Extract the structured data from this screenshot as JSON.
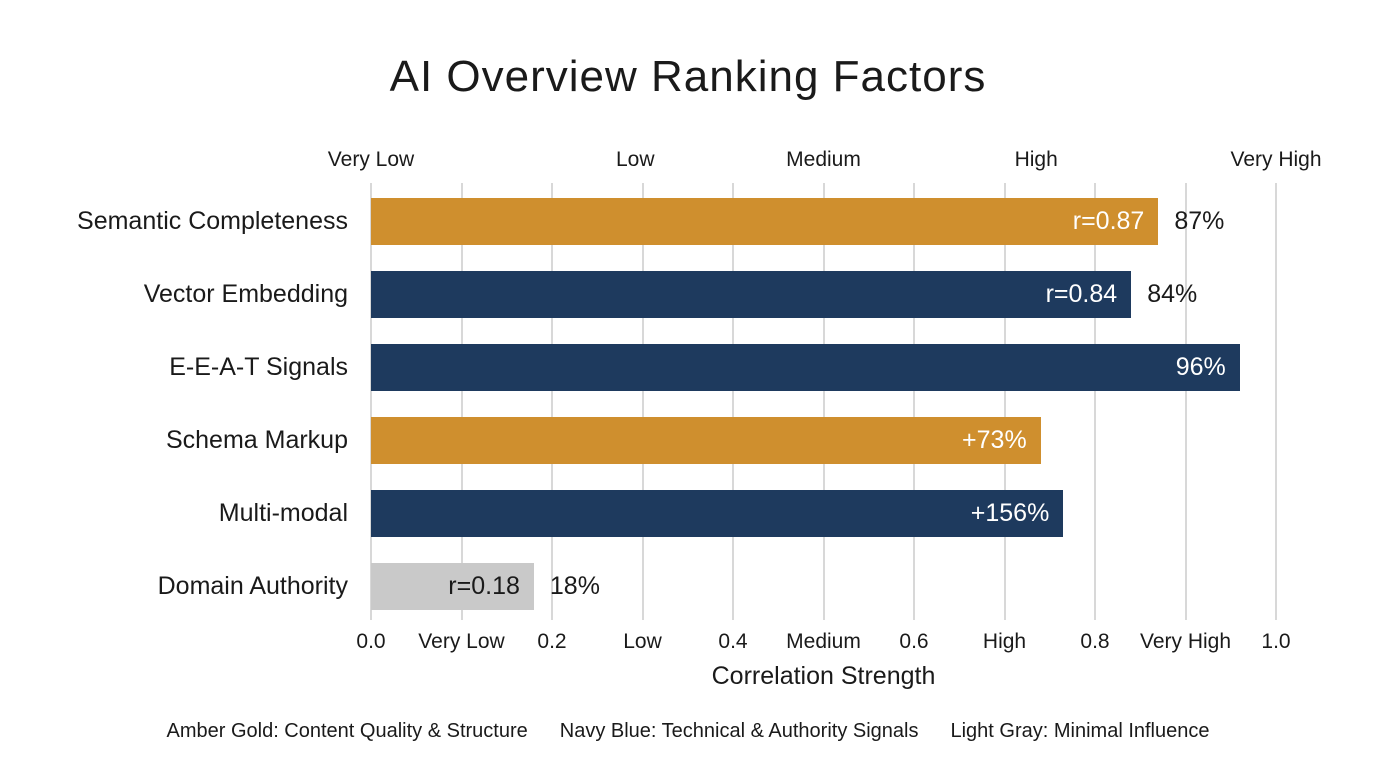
{
  "title": "AI Overview Ranking Factors",
  "chart_data": {
    "type": "bar",
    "orientation": "horizontal",
    "title": "AI Overview Ranking Factors",
    "xlabel": "Correlation Strength",
    "xlim": [
      0,
      1
    ],
    "grid": true,
    "gridline_positions": [
      0,
      0.1,
      0.2,
      0.3,
      0.4,
      0.5,
      0.6,
      0.7,
      0.8,
      0.9,
      1.0
    ],
    "categories": [
      "Semantic Completeness",
      "Vector Embedding",
      "E-E-A-T Signals",
      "Schema Markup",
      "Multi-modal",
      "Domain Authority"
    ],
    "series": [
      {
        "category": "Semantic Completeness",
        "bar_fraction": 0.87,
        "inside_label": "r=0.87",
        "outside_label": "87%",
        "color_key": "amber"
      },
      {
        "category": "Vector Embedding",
        "bar_fraction": 0.84,
        "inside_label": "r=0.84",
        "outside_label": "84%",
        "color_key": "navy"
      },
      {
        "category": "E-E-A-T Signals",
        "bar_fraction": 0.96,
        "inside_label": "96%",
        "outside_label": "",
        "color_key": "navy"
      },
      {
        "category": "Schema Markup",
        "bar_fraction": 0.74,
        "inside_label": "+73%",
        "outside_label": "",
        "color_key": "amber"
      },
      {
        "category": "Multi-modal",
        "bar_fraction": 0.765,
        "inside_label": "+156%",
        "outside_label": "",
        "color_key": "navy"
      },
      {
        "category": "Domain Authority",
        "bar_fraction": 0.18,
        "inside_label": "r=0.18",
        "outside_label": "18%",
        "color_key": "gray"
      }
    ],
    "palette": {
      "amber": {
        "fill": "#cf8f2e",
        "label_color": "#ffffff"
      },
      "navy": {
        "fill": "#1e3a5e",
        "label_color": "#ffffff"
      },
      "gray": {
        "fill": "#c9c9c9",
        "label_color": "#1a1a1a"
      }
    },
    "top_axis_labels": [
      {
        "pos": 0.0,
        "label": "Very Low"
      },
      {
        "pos": 0.292,
        "label": "Low"
      },
      {
        "pos": 0.5,
        "label": "Medium"
      },
      {
        "pos": 0.735,
        "label": "High"
      },
      {
        "pos": 1.0,
        "label": "Very High"
      }
    ],
    "x_ticks": [
      {
        "pos": 0.0,
        "label": "0.0"
      },
      {
        "pos": 0.1,
        "label": "Very Low"
      },
      {
        "pos": 0.2,
        "label": "0.2"
      },
      {
        "pos": 0.3,
        "label": "Low"
      },
      {
        "pos": 0.4,
        "label": "0.4"
      },
      {
        "pos": 0.5,
        "label": "Medium"
      },
      {
        "pos": 0.6,
        "label": "0.6"
      },
      {
        "pos": 0.7,
        "label": "High"
      },
      {
        "pos": 0.8,
        "label": "0.8"
      },
      {
        "pos": 0.9,
        "label": "Very High"
      },
      {
        "pos": 1.0,
        "label": "1.0"
      }
    ]
  },
  "legend": {
    "items": [
      "Amber Gold: Content Quality & Structure",
      "Navy Blue: Technical & Authority Signals",
      "Light Gray: Minimal Influence"
    ]
  },
  "colors": {
    "background": "#ffffff",
    "text": "#1a1a1a",
    "gridline": "#d8d8d8"
  }
}
